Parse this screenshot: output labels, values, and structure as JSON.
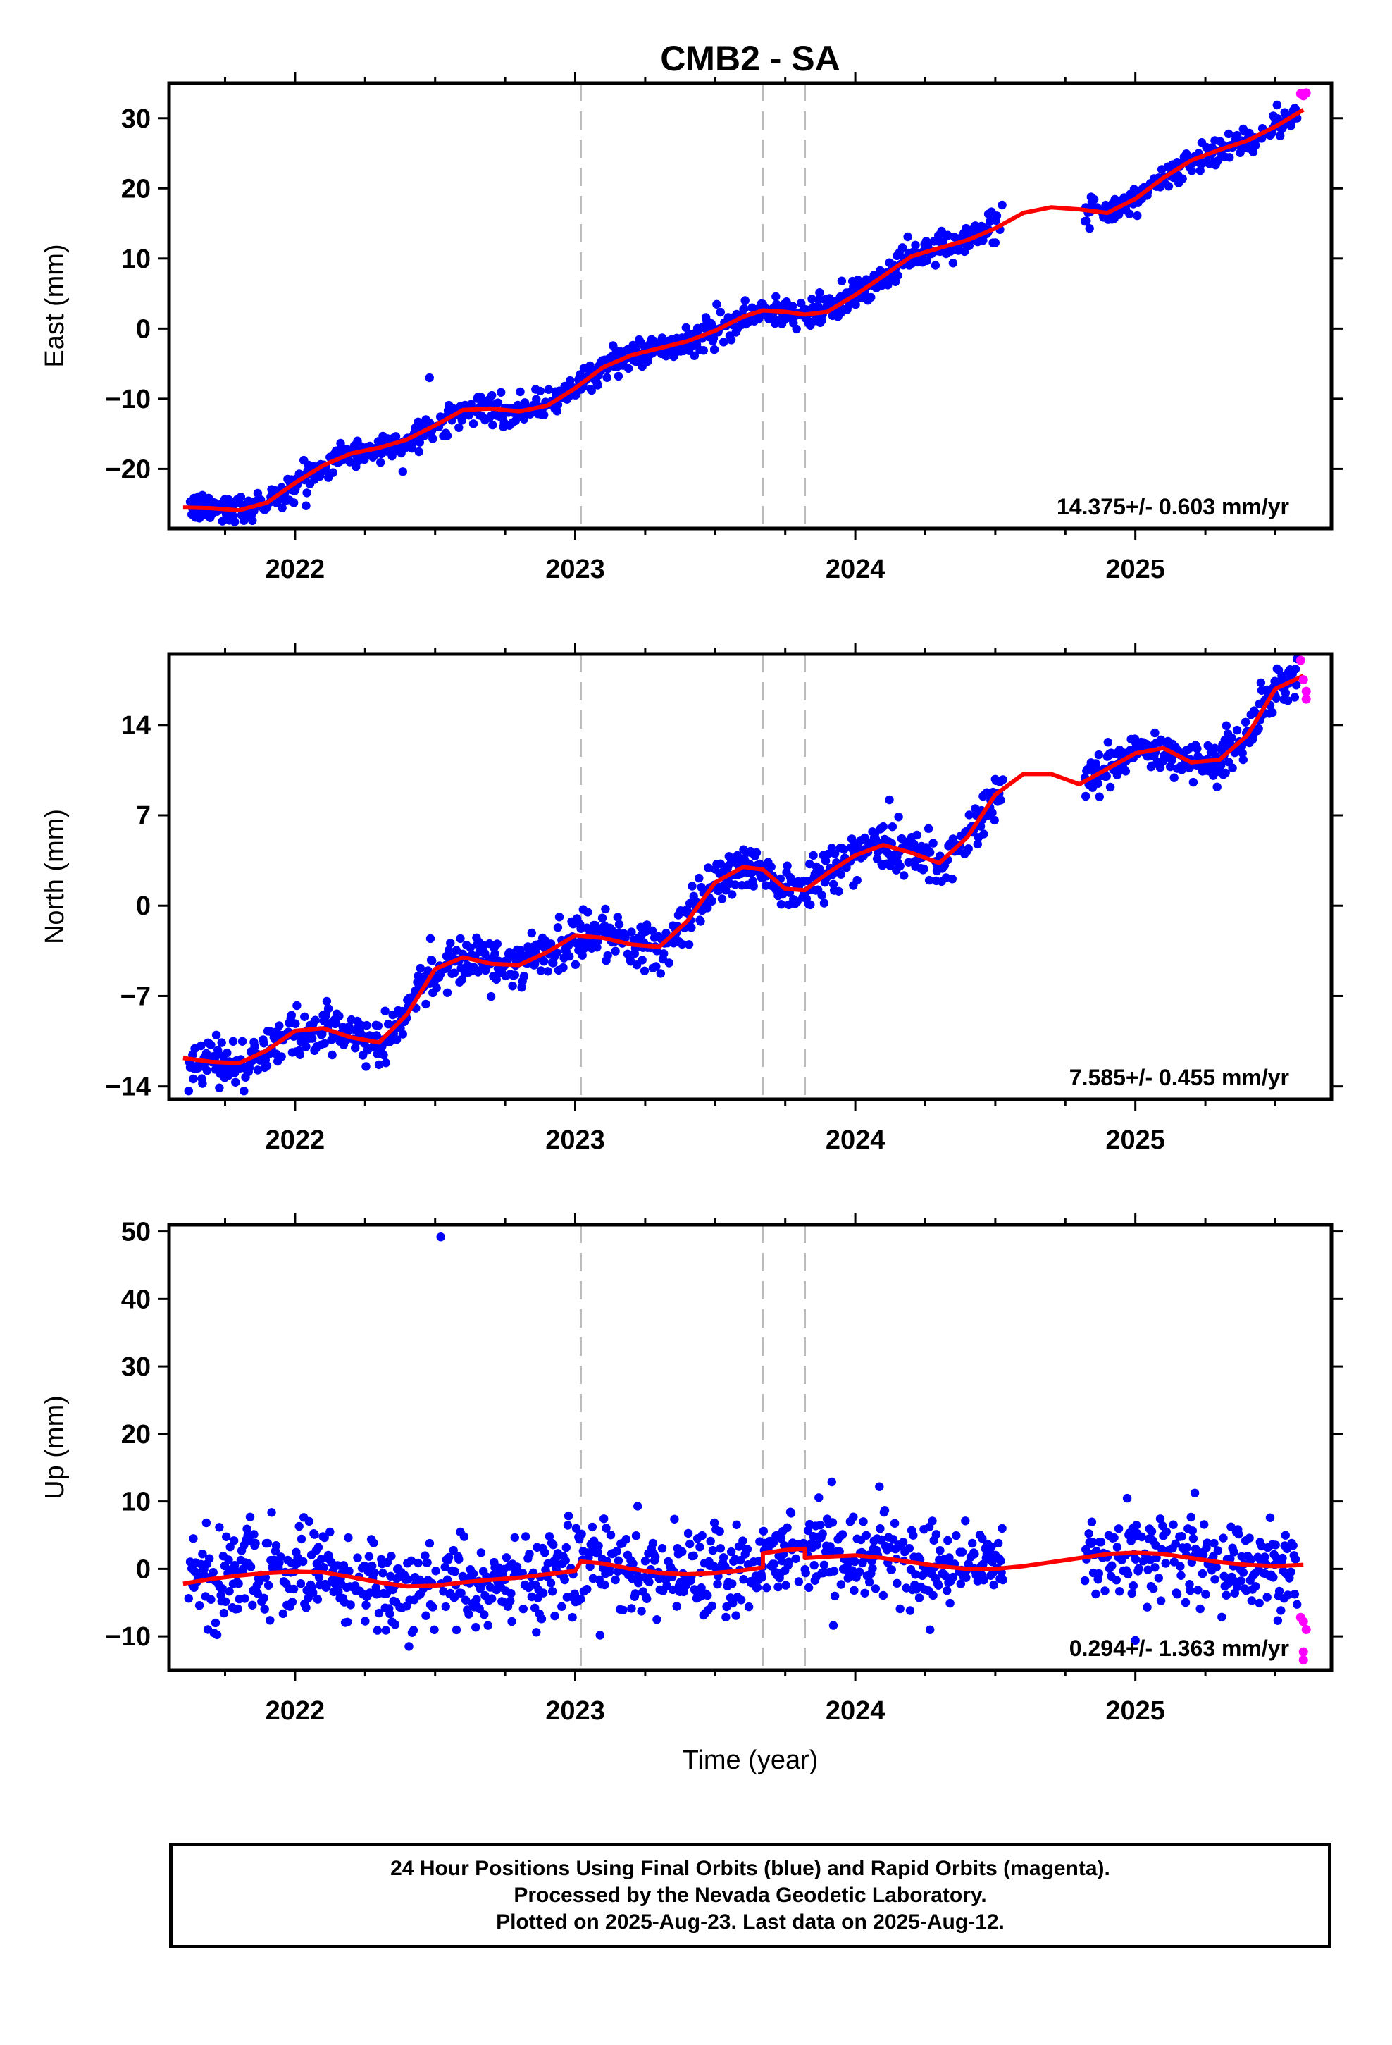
{
  "colors": {
    "final_orbits": "#0000ff",
    "rapid_orbits": "#ff00ff",
    "model": "#ff0000",
    "event_lines": "#bbbbbb",
    "frame": "#000000"
  },
  "chart_data": [
    {
      "type": "scatter",
      "title": "CMB2 - SA",
      "ylabel": "East (mm)",
      "xlabel": "",
      "xlim": [
        2021.55,
        2025.7
      ],
      "ylim": [
        -28.5,
        35
      ],
      "xticks": [
        2022,
        2023,
        2024,
        2025
      ],
      "yticks": [
        -20,
        -10,
        0,
        10,
        20,
        30
      ],
      "grid": false,
      "event_lines_x": [
        2023.02,
        2023.67,
        2023.82
      ],
      "rate_label": "14.375+/- 0.603 mm/yr",
      "rate_location": "bottom-right",
      "final_segments": [
        {
          "x0": 2021.62,
          "x1": 2024.53,
          "noise": 1.05,
          "outlier_x": [
            2022.48
          ],
          "outlier_y": [
            -7
          ]
        },
        {
          "x0": 2024.82,
          "x1": 2025.58,
          "noise": 0.95
        }
      ],
      "rapid_points": {
        "x": [
          2025.59,
          2025.6,
          2025.61
        ],
        "y": [
          33.5,
          33.2,
          33.6
        ]
      },
      "model": {
        "x": [
          2021.6,
          2021.7,
          2021.8,
          2021.9,
          2022.0,
          2022.1,
          2022.2,
          2022.3,
          2022.4,
          2022.5,
          2022.6,
          2022.7,
          2022.8,
          2022.9,
          2023.0,
          2023.1,
          2023.2,
          2023.3,
          2023.4,
          2023.5,
          2023.6,
          2023.67,
          2023.75,
          2023.82,
          2023.9,
          2024.0,
          2024.1,
          2024.2,
          2024.3,
          2024.4,
          2024.5,
          2024.6,
          2024.7,
          2024.8,
          2024.9,
          2025.0,
          2025.1,
          2025.2,
          2025.3,
          2025.4,
          2025.5,
          2025.6
        ],
        "y": [
          -25.5,
          -25.6,
          -25.9,
          -24.8,
          -22.0,
          -19.5,
          -17.8,
          -17.0,
          -15.8,
          -13.8,
          -11.6,
          -11.4,
          -11.8,
          -11.0,
          -8.5,
          -5.5,
          -3.8,
          -2.8,
          -1.8,
          -0.3,
          1.7,
          2.6,
          2.4,
          2.0,
          2.4,
          4.8,
          7.5,
          10.3,
          11.5,
          12.6,
          14.3,
          16.5,
          17.3,
          17.0,
          16.5,
          18.5,
          21.5,
          24.0,
          25.5,
          26.8,
          28.8,
          31.2
        ]
      }
    },
    {
      "type": "scatter",
      "title": "",
      "ylabel": "North (mm)",
      "xlabel": "",
      "xlim": [
        2021.55,
        2025.7
      ],
      "ylim": [
        -15,
        19.5
      ],
      "xticks": [
        2022,
        2023,
        2024,
        2025
      ],
      "yticks": [
        -14,
        -7,
        0,
        7,
        14
      ],
      "grid": false,
      "event_lines_x": [
        2023.02,
        2023.67,
        2023.82
      ],
      "rate_label": "7.585+/- 0.455 mm/yr",
      "rate_location": "bottom-right",
      "final_segments": [
        {
          "x0": 2021.62,
          "x1": 2024.53,
          "noise": 0.95
        },
        {
          "x0": 2024.82,
          "x1": 2025.58,
          "noise": 0.85
        }
      ],
      "rapid_points": {
        "x": [
          2025.59,
          2025.6,
          2025.61,
          2025.61
        ],
        "y": [
          19.0,
          17.5,
          16.6,
          16.0
        ]
      },
      "model": {
        "x": [
          2021.6,
          2021.7,
          2021.8,
          2021.9,
          2022.0,
          2022.1,
          2022.2,
          2022.3,
          2022.4,
          2022.5,
          2022.6,
          2022.7,
          2022.8,
          2022.9,
          2023.0,
          2023.1,
          2023.2,
          2023.3,
          2023.4,
          2023.5,
          2023.6,
          2023.67,
          2023.75,
          2023.82,
          2023.9,
          2024.0,
          2024.1,
          2024.2,
          2024.3,
          2024.4,
          2024.5,
          2024.6,
          2024.7,
          2024.8,
          2024.9,
          2025.0,
          2025.1,
          2025.2,
          2025.3,
          2025.4,
          2025.5,
          2025.6
        ],
        "y": [
          -11.8,
          -12.1,
          -12.2,
          -11.2,
          -9.7,
          -9.5,
          -10.2,
          -10.6,
          -8.4,
          -4.9,
          -4.0,
          -4.5,
          -4.6,
          -3.6,
          -2.3,
          -2.5,
          -3.0,
          -3.2,
          -1.2,
          1.8,
          3.0,
          2.8,
          1.3,
          1.2,
          2.5,
          3.9,
          4.7,
          4.1,
          3.3,
          5.3,
          8.6,
          10.2,
          10.2,
          9.4,
          10.6,
          11.8,
          12.2,
          11.1,
          11.3,
          13.2,
          16.8,
          17.8
        ]
      }
    },
    {
      "type": "scatter",
      "title": "",
      "ylabel": "Up (mm)",
      "xlabel": "Time (year)",
      "xlim": [
        2021.55,
        2025.7
      ],
      "ylim": [
        -15,
        51
      ],
      "xticks": [
        2022,
        2023,
        2024,
        2025
      ],
      "yticks": [
        -10,
        0,
        10,
        20,
        30,
        40,
        50
      ],
      "grid": false,
      "event_lines_x": [
        2023.02,
        2023.67,
        2023.82
      ],
      "rate_label": "0.294+/- 1.363 mm/yr",
      "rate_location": "bottom-right",
      "final_segments": [
        {
          "x0": 2021.62,
          "x1": 2024.53,
          "noise": 3.4,
          "outlier_x": [
            2022.52,
            2025.0
          ],
          "outlier_y": [
            49.2,
            -10.6
          ]
        },
        {
          "x0": 2024.82,
          "x1": 2025.58,
          "noise": 3.2
        }
      ],
      "rapid_points": {
        "x": [
          2025.59,
          2025.6,
          2025.61,
          2025.6,
          2025.6
        ],
        "y": [
          -7.2,
          -7.8,
          -9.0,
          -12.3,
          -13.5
        ]
      },
      "model": {
        "x": [
          2021.6,
          2021.7,
          2021.8,
          2021.9,
          2022.0,
          2022.1,
          2022.2,
          2022.3,
          2022.4,
          2022.5,
          2022.6,
          2022.7,
          2022.8,
          2022.9,
          2023.0,
          2023.02,
          2023.1,
          2023.2,
          2023.3,
          2023.4,
          2023.5,
          2023.6,
          2023.67,
          2023.67,
          2023.75,
          2023.82,
          2023.82,
          2023.9,
          2024.0,
          2024.1,
          2024.2,
          2024.3,
          2024.4,
          2024.5,
          2024.6,
          2024.7,
          2024.8,
          2024.9,
          2025.0,
          2025.1,
          2025.2,
          2025.3,
          2025.4,
          2025.5,
          2025.6
        ],
        "y": [
          -2.2,
          -1.5,
          -1.0,
          -0.6,
          -0.4,
          -0.5,
          -1.2,
          -2.0,
          -2.6,
          -2.5,
          -2.0,
          -1.6,
          -1.3,
          -0.8,
          -0.3,
          1.1,
          0.8,
          0.0,
          -0.6,
          -0.8,
          -0.6,
          -0.2,
          0.2,
          2.3,
          2.8,
          3.0,
          1.6,
          1.8,
          2.0,
          1.6,
          1.0,
          0.4,
          0.0,
          0.0,
          0.4,
          1.0,
          1.6,
          2.2,
          2.4,
          2.2,
          1.6,
          1.0,
          0.6,
          0.4,
          0.6
        ]
      }
    }
  ],
  "footer": {
    "line1": "24 Hour Positions Using Final Orbits (blue) and Rapid Orbits (magenta).",
    "line2": "Processed by the Nevada Geodetic Laboratory.",
    "line3": "Plotted on 2025-Aug-23. Last data on 2025-Aug-12."
  }
}
